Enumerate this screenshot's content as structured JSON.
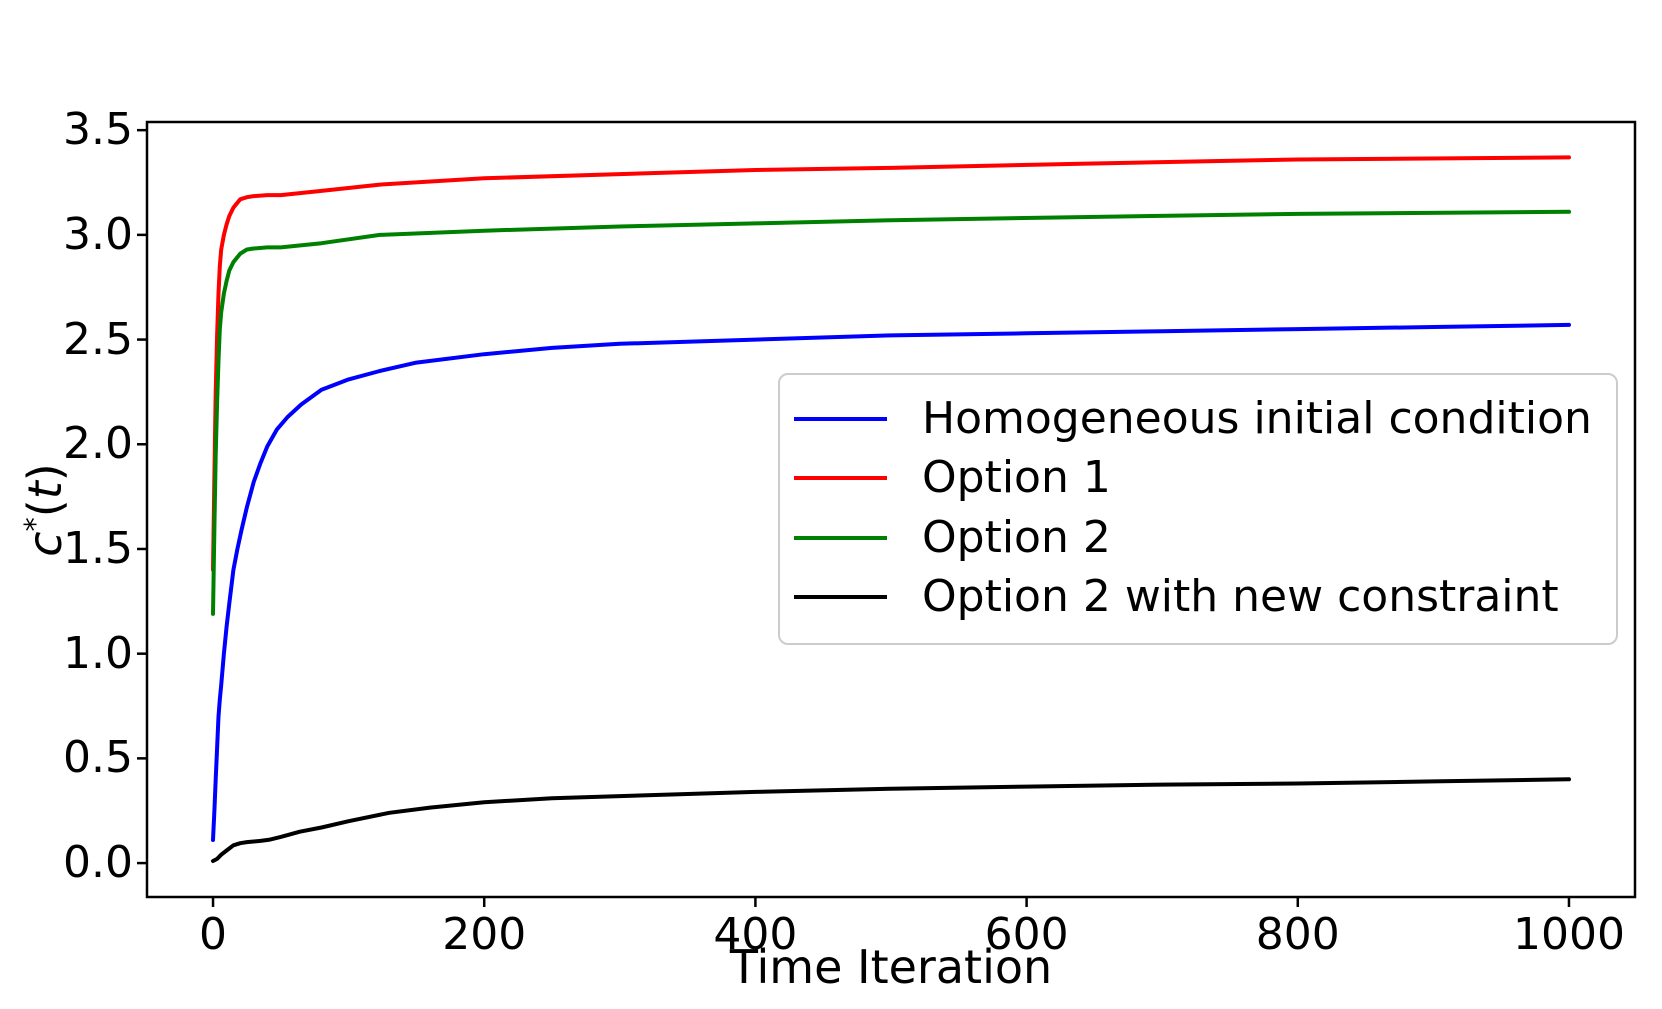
{
  "chart_data": {
    "type": "line",
    "title": "",
    "xlabel": "Time Iteration",
    "ylabel": "c*(t)",
    "ylabel_parts": {
      "var": "c",
      "sup": "*",
      "open": "(",
      "arg": "t",
      "close": ")"
    },
    "xlim": [
      -48.7,
      1048.7
    ],
    "ylim": [
      -0.162,
      3.539
    ],
    "xticks": [
      0,
      200,
      400,
      600,
      800,
      1000
    ],
    "xtick_labels": [
      "0",
      "200",
      "400",
      "600",
      "800",
      "1000"
    ],
    "yticks": [
      0.0,
      0.5,
      1.0,
      1.5,
      2.0,
      2.5,
      3.0,
      3.5
    ],
    "ytick_labels": [
      "0.0",
      "0.5",
      "1.0",
      "1.5",
      "2.0",
      "2.5",
      "3.0",
      "3.5"
    ],
    "grid": false,
    "legend_position": "inside center-right",
    "legend_border_color": "#cccccc",
    "axis_color": "#000000",
    "background_color": "#ffffff",
    "series": [
      {
        "name": "Homogeneous initial condition",
        "color": "#0000ff",
        "x": [
          0,
          1,
          2,
          3,
          4,
          5,
          6,
          8,
          10,
          12,
          15,
          18,
          21,
          25,
          30,
          35,
          40,
          47,
          55,
          65,
          80,
          100,
          123,
          150,
          200,
          250,
          300,
          400,
          500,
          600,
          700,
          800,
          900,
          1000
        ],
        "y": [
          0.11,
          0.25,
          0.4,
          0.55,
          0.7,
          0.78,
          0.85,
          1.0,
          1.13,
          1.24,
          1.4,
          1.5,
          1.59,
          1.7,
          1.82,
          1.91,
          1.99,
          2.07,
          2.13,
          2.19,
          2.26,
          2.31,
          2.35,
          2.39,
          2.43,
          2.46,
          2.48,
          2.5,
          2.52,
          2.53,
          2.54,
          2.55,
          2.56,
          2.57
        ]
      },
      {
        "name": "Option 1",
        "color": "#ff0000",
        "x": [
          0,
          1,
          2,
          3,
          4,
          5,
          6,
          8,
          10,
          12,
          15,
          20,
          25,
          30,
          40,
          50,
          80,
          123,
          200,
          300,
          400,
          500,
          640,
          800,
          1000
        ],
        "y": [
          1.4,
          1.85,
          2.25,
          2.52,
          2.72,
          2.85,
          2.93,
          3.0,
          3.05,
          3.09,
          3.13,
          3.17,
          3.18,
          3.185,
          3.19,
          3.19,
          3.21,
          3.24,
          3.27,
          3.29,
          3.31,
          3.32,
          3.34,
          3.36,
          3.37
        ]
      },
      {
        "name": "Option 2",
        "color": "#008000",
        "x": [
          0,
          1,
          2,
          3,
          4,
          5,
          6,
          8,
          10,
          12,
          15,
          20,
          25,
          30,
          40,
          50,
          80,
          123,
          200,
          300,
          400,
          500,
          640,
          800,
          1000
        ],
        "y": [
          1.19,
          1.6,
          1.95,
          2.2,
          2.4,
          2.55,
          2.63,
          2.72,
          2.78,
          2.83,
          2.87,
          2.91,
          2.93,
          2.935,
          2.94,
          2.94,
          2.96,
          3.0,
          3.02,
          3.04,
          3.055,
          3.07,
          3.085,
          3.1,
          3.11
        ]
      },
      {
        "name": "Option 2 with new constraint",
        "color": "#000000",
        "x": [
          0,
          3,
          6,
          10,
          15,
          20,
          25,
          30,
          35,
          42,
          50,
          64,
          80,
          100,
          130,
          160,
          200,
          250,
          300,
          350,
          400,
          500,
          600,
          700,
          800,
          900,
          1000
        ],
        "y": [
          0.01,
          0.02,
          0.04,
          0.06,
          0.085,
          0.095,
          0.1,
          0.103,
          0.106,
          0.112,
          0.125,
          0.15,
          0.17,
          0.2,
          0.24,
          0.265,
          0.29,
          0.31,
          0.32,
          0.33,
          0.34,
          0.355,
          0.365,
          0.375,
          0.38,
          0.39,
          0.4
        ]
      }
    ]
  }
}
